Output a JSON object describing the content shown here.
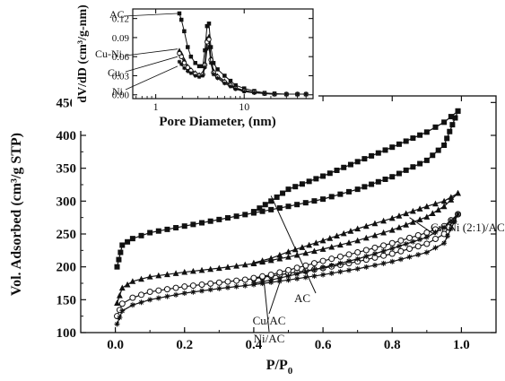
{
  "chart_data": [
    {
      "type": "line",
      "panel": "main",
      "xlabel": "P/P",
      "xlabel_sub": "0",
      "ylabel": "Vol. Adsorbed (cm³/g STP)",
      "xlim": [
        -0.1,
        1.1
      ],
      "ylim": [
        100,
        460
      ],
      "xticks": [
        0.0,
        0.2,
        0.4,
        0.6,
        0.8,
        1.0
      ],
      "xtick_labels": [
        "0.0",
        "0.2",
        "0.4",
        "0.6",
        "0.8",
        "1.0"
      ],
      "yticks": [
        100,
        150,
        200,
        250,
        300,
        350,
        400,
        450
      ],
      "ytick_labels": [
        "100",
        "150",
        "200",
        "250",
        "300",
        "350",
        "400",
        "450"
      ],
      "grid": false,
      "legend": "none",
      "series": [
        {
          "name": "AC",
          "marker": "square-filled",
          "adsorption": {
            "x": [
              0.005,
              0.02,
              0.05,
              0.1,
              0.2,
              0.3,
              0.4,
              0.5,
              0.6,
              0.7,
              0.8,
              0.9,
              0.95,
              0.99
            ],
            "y": [
              200,
              233,
              243,
              252,
              262,
              272,
              282,
              292,
              303,
              318,
              337,
              362,
              385,
              437
            ]
          },
          "desorption": {
            "x": [
              0.99,
              0.95,
              0.9,
              0.8,
              0.7,
              0.6,
              0.5,
              0.45,
              0.4
            ],
            "y": [
              437,
              420,
              405,
              382,
              360,
              338,
              318,
              300,
              284
            ]
          }
        },
        {
          "name": "Cu-Ni (2:1)/AC",
          "marker": "triangle-filled",
          "adsorption": {
            "x": [
              0.005,
              0.02,
              0.05,
              0.1,
              0.2,
              0.3,
              0.4,
              0.5,
              0.6,
              0.7,
              0.8,
              0.9,
              0.95,
              0.99
            ],
            "y": [
              145,
              168,
              178,
              185,
              192,
              198,
              205,
              215,
              227,
              240,
              256,
              276,
              292,
              312
            ]
          },
          "desorption": {
            "x": [
              0.99,
              0.95,
              0.9,
              0.8,
              0.7,
              0.6,
              0.5,
              0.45,
              0.4
            ],
            "y": [
              312,
              300,
              292,
              274,
              258,
              240,
              223,
              213,
              206
            ]
          }
        },
        {
          "name": "Cu/AC",
          "marker": "circle-open",
          "adsorption": {
            "x": [
              0.005,
              0.02,
              0.05,
              0.1,
              0.2,
              0.3,
              0.4,
              0.5,
              0.6,
              0.7,
              0.8,
              0.9,
              0.95,
              0.99
            ],
            "y": [
              125,
              144,
              153,
              162,
              170,
              176,
              182,
              190,
              198,
              208,
              220,
              235,
              250,
              280
            ]
          },
          "desorption": {
            "x": [
              0.99,
              0.95,
              0.9,
              0.8,
              0.7,
              0.6,
              0.5,
              0.45,
              0.4
            ],
            "y": [
              280,
              262,
              252,
              236,
              222,
              209,
              195,
              188,
              183
            ]
          }
        },
        {
          "name": "Ni/AC",
          "marker": "star",
          "adsorption": {
            "x": [
              0.005,
              0.02,
              0.05,
              0.1,
              0.2,
              0.3,
              0.4,
              0.5,
              0.6,
              0.7,
              0.8,
              0.9,
              0.95,
              0.99
            ],
            "y": [
              113,
              133,
              142,
              150,
              160,
              167,
              173,
              180,
              188,
              197,
              208,
              222,
              236,
              280
            ]
          },
          "desorption": {
            "x": [
              0.99,
              0.95,
              0.9,
              0.8,
              0.7,
              0.6,
              0.5,
              0.45,
              0.4
            ],
            "y": [
              280,
              260,
              245,
              228,
              212,
              199,
              186,
              180,
              175
            ]
          }
        }
      ],
      "annotations": [
        {
          "text": "AC",
          "points_to": [
            0.45,
            308
          ]
        },
        {
          "text": "Cu-Ni (2:1)/AC",
          "points_to": [
            0.85,
            275
          ]
        },
        {
          "text": "Cu/AC",
          "points_to": [
            0.48,
            184
          ]
        },
        {
          "text": "Ni/AC",
          "points_to": [
            0.43,
            176
          ]
        }
      ]
    },
    {
      "type": "line",
      "panel": "inset",
      "xlabel": "Pore Diameter, (nm)",
      "ylabel": "dV/dD (cm³/g-nm)",
      "xscale": "log",
      "xlim": [
        0.55,
        60
      ],
      "ylim": [
        -0.006,
        0.135
      ],
      "xticks": [
        1,
        10
      ],
      "xtick_labels": [
        "1",
        "10"
      ],
      "yticks": [
        0.0,
        0.03,
        0.06,
        0.09,
        0.12
      ],
      "ytick_labels": [
        "0.00",
        "0.03",
        "0.06",
        "0.09",
        "0.12"
      ],
      "grid": false,
      "legend": "none",
      "series": [
        {
          "name": "AC",
          "marker": "square-filled",
          "x": [
            1.85,
            1.95,
            2.1,
            2.3,
            2.5,
            2.8,
            3.1,
            3.4,
            3.6,
            3.8,
            4.0,
            4.2,
            4.5,
            5,
            6,
            7,
            8,
            10,
            13,
            17,
            22,
            30,
            40,
            50
          ],
          "y": [
            0.128,
            0.118,
            0.1,
            0.075,
            0.06,
            0.05,
            0.045,
            0.045,
            0.07,
            0.108,
            0.112,
            0.075,
            0.05,
            0.04,
            0.03,
            0.022,
            0.015,
            0.01,
            0.006,
            0.003,
            0.002,
            0.001,
            0.001,
            0.001
          ]
        },
        {
          "name": "Cu-Ni",
          "marker": "triangle-filled",
          "x": [
            1.85,
            1.95,
            2.1,
            2.3,
            2.5,
            2.8,
            3.1,
            3.4,
            3.6,
            3.8,
            4.0,
            4.2,
            4.5,
            5,
            6,
            7,
            8,
            10,
            13,
            17,
            22,
            30,
            40,
            50
          ],
          "y": [
            0.07,
            0.065,
            0.055,
            0.045,
            0.04,
            0.035,
            0.032,
            0.034,
            0.05,
            0.088,
            0.092,
            0.058,
            0.038,
            0.03,
            0.022,
            0.016,
            0.011,
            0.007,
            0.004,
            0.002,
            0.001,
            0.001,
            0.001,
            0.001
          ]
        },
        {
          "name": "Cu",
          "marker": "circle-open",
          "x": [
            1.85,
            1.95,
            2.1,
            2.3,
            2.5,
            2.8,
            3.1,
            3.4,
            3.6,
            3.8,
            4.0,
            4.2,
            4.5,
            5,
            6,
            7,
            8,
            10,
            13,
            17,
            22,
            30,
            40,
            50
          ],
          "y": [
            0.065,
            0.06,
            0.05,
            0.043,
            0.038,
            0.033,
            0.03,
            0.032,
            0.047,
            0.083,
            0.087,
            0.055,
            0.035,
            0.028,
            0.02,
            0.015,
            0.01,
            0.006,
            0.004,
            0.002,
            0.001,
            0.001,
            0.001,
            0.001
          ]
        },
        {
          "name": "Ni",
          "marker": "star",
          "x": [
            1.85,
            1.95,
            2.1,
            2.3,
            2.5,
            2.8,
            3.1,
            3.4,
            3.6,
            3.8,
            4.0,
            4.2,
            4.5,
            5,
            6,
            7,
            8,
            10,
            13,
            17,
            22,
            30,
            40,
            50
          ],
          "y": [
            0.052,
            0.048,
            0.042,
            0.037,
            0.034,
            0.03,
            0.028,
            0.03,
            0.043,
            0.072,
            0.076,
            0.05,
            0.032,
            0.026,
            0.018,
            0.013,
            0.009,
            0.005,
            0.003,
            0.002,
            0.001,
            0.001,
            0.001,
            0.001
          ]
        }
      ],
      "annotations": [
        {
          "text": "AC",
          "points_to": [
            1.85,
            0.128
          ]
        },
        {
          "text": "Cu-Ni",
          "points_to": [
            1.85,
            0.072
          ]
        },
        {
          "text": "Cu",
          "points_to": [
            1.85,
            0.06
          ]
        },
        {
          "text": "Ni",
          "points_to": [
            1.85,
            0.045
          ]
        }
      ]
    }
  ]
}
